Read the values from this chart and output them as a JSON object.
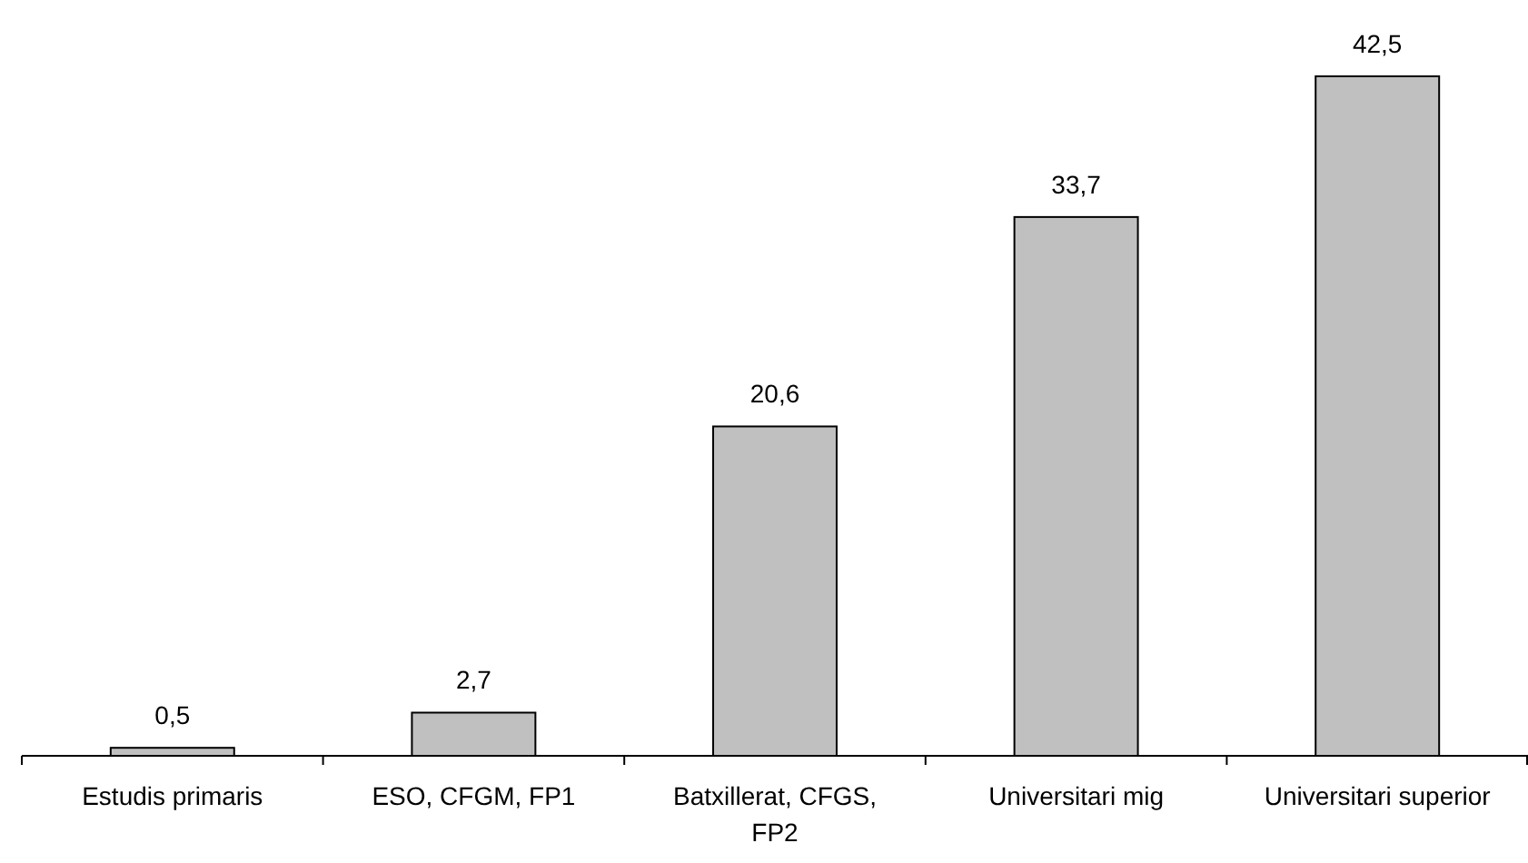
{
  "chart_data": {
    "type": "bar",
    "categories": [
      "Estudis primaris",
      "ESO, CFGM, FP1",
      "Batxillerat, CFGS, FP2",
      "Universitari mig",
      "Universitari superior"
    ],
    "values": [
      0.5,
      2.7,
      20.6,
      33.7,
      42.5
    ],
    "value_labels": [
      "0,5",
      "2,7",
      "20,6",
      "33,7",
      "42,5"
    ],
    "color": "#c0c0c0"
  }
}
